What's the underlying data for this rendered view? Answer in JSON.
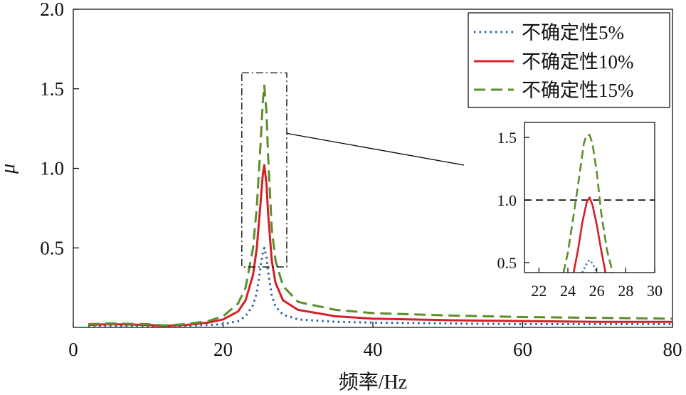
{
  "chart_data": [
    {
      "type": "line",
      "title": "",
      "xlabel": "频率/Hz",
      "ylabel": "μ",
      "xlim": [
        0,
        80
      ],
      "ylim": [
        0,
        2.0
      ],
      "x_ticks": [
        0,
        20,
        40,
        60,
        80
      ],
      "y_ticks": [
        0.5,
        1.0,
        1.5,
        2.0
      ],
      "y_tick_labels": [
        "0.5",
        "1.0",
        "1.5",
        "2.0"
      ],
      "legend_position": "top-right",
      "series": [
        {
          "name": "不确定性5%",
          "color": "#2f5fa8",
          "style": "dotted",
          "x": [
            2,
            5,
            10,
            15,
            18,
            20,
            22,
            23,
            24,
            24.5,
            25,
            25.3,
            25.5,
            25.8,
            26,
            26.5,
            27,
            28,
            30,
            35,
            40,
            50,
            60,
            70,
            80
          ],
          "values": [
            0.01,
            0.01,
            0.01,
            0.01,
            0.015,
            0.02,
            0.04,
            0.07,
            0.14,
            0.22,
            0.38,
            0.47,
            0.5,
            0.44,
            0.35,
            0.2,
            0.13,
            0.08,
            0.05,
            0.035,
            0.03,
            0.025,
            0.02,
            0.02,
            0.02
          ]
        },
        {
          "name": "不确定性10%",
          "color": "#d42027",
          "style": "solid",
          "x": [
            2,
            5,
            10,
            12,
            15,
            18,
            20,
            22,
            23,
            24,
            24.5,
            25,
            25.3,
            25.5,
            25.8,
            26,
            26.5,
            27,
            28,
            30,
            35,
            40,
            50,
            60,
            70,
            80
          ],
          "values": [
            0.015,
            0.02,
            0.015,
            0.01,
            0.015,
            0.03,
            0.05,
            0.1,
            0.17,
            0.33,
            0.5,
            0.78,
            0.96,
            1.02,
            0.9,
            0.72,
            0.42,
            0.28,
            0.17,
            0.11,
            0.07,
            0.055,
            0.045,
            0.04,
            0.035,
            0.035
          ]
        },
        {
          "name": "不确定性15%",
          "color": "#5a8f2a",
          "style": "dashed",
          "x": [
            2,
            5,
            10,
            12,
            15,
            18,
            20,
            22,
            23,
            24,
            24.5,
            25,
            25.3,
            25.5,
            25.8,
            26,
            26.5,
            27,
            28,
            30,
            35,
            40,
            50,
            60,
            70,
            80
          ],
          "values": [
            0.02,
            0.025,
            0.02,
            0.012,
            0.02,
            0.04,
            0.07,
            0.15,
            0.25,
            0.5,
            0.76,
            1.15,
            1.42,
            1.52,
            1.35,
            1.08,
            0.62,
            0.42,
            0.26,
            0.16,
            0.11,
            0.09,
            0.075,
            0.065,
            0.06,
            0.055
          ]
        }
      ],
      "zoom_box": {
        "x_range": [
          22.5,
          28.5
        ],
        "y_range": [
          0.38,
          1.6
        ]
      },
      "annotations": []
    },
    {
      "type": "line",
      "title": "",
      "xlabel": "",
      "ylabel": "",
      "xlim": [
        21,
        30
      ],
      "ylim": [
        0.42,
        1.62
      ],
      "x_ticks": [
        22,
        24,
        26,
        28,
        30
      ],
      "y_ticks": [
        0.5,
        1.0,
        1.5
      ],
      "y_tick_labels": [
        "0.5",
        "1.0",
        "1.5"
      ],
      "reference_line": {
        "y": 1.0,
        "style": "dashed",
        "color": "#000000"
      },
      "series": [
        {
          "name": "不确定性5%",
          "color": "#2f5fa8",
          "style": "dotted",
          "x": [
            25.0,
            25.2,
            25.4,
            25.5,
            25.6,
            25.8,
            26.0
          ],
          "values": [
            0.42,
            0.47,
            0.51,
            0.52,
            0.51,
            0.47,
            0.42
          ]
        },
        {
          "name": "不确定性10%",
          "color": "#d42027",
          "style": "solid",
          "x": [
            24.4,
            24.7,
            25.0,
            25.3,
            25.5,
            25.7,
            26.0,
            26.3,
            26.6
          ],
          "values": [
            0.42,
            0.6,
            0.82,
            0.98,
            1.02,
            0.96,
            0.8,
            0.6,
            0.42
          ]
        },
        {
          "name": "不确定性15%",
          "color": "#5a8f2a",
          "style": "dashed",
          "x": [
            23.7,
            24.0,
            24.4,
            24.8,
            25.1,
            25.3,
            25.5,
            25.7,
            26.0,
            26.3,
            26.7,
            27.1
          ],
          "values": [
            0.42,
            0.58,
            0.88,
            1.2,
            1.45,
            1.52,
            1.52,
            1.45,
            1.22,
            0.9,
            0.6,
            0.42
          ]
        }
      ]
    }
  ]
}
